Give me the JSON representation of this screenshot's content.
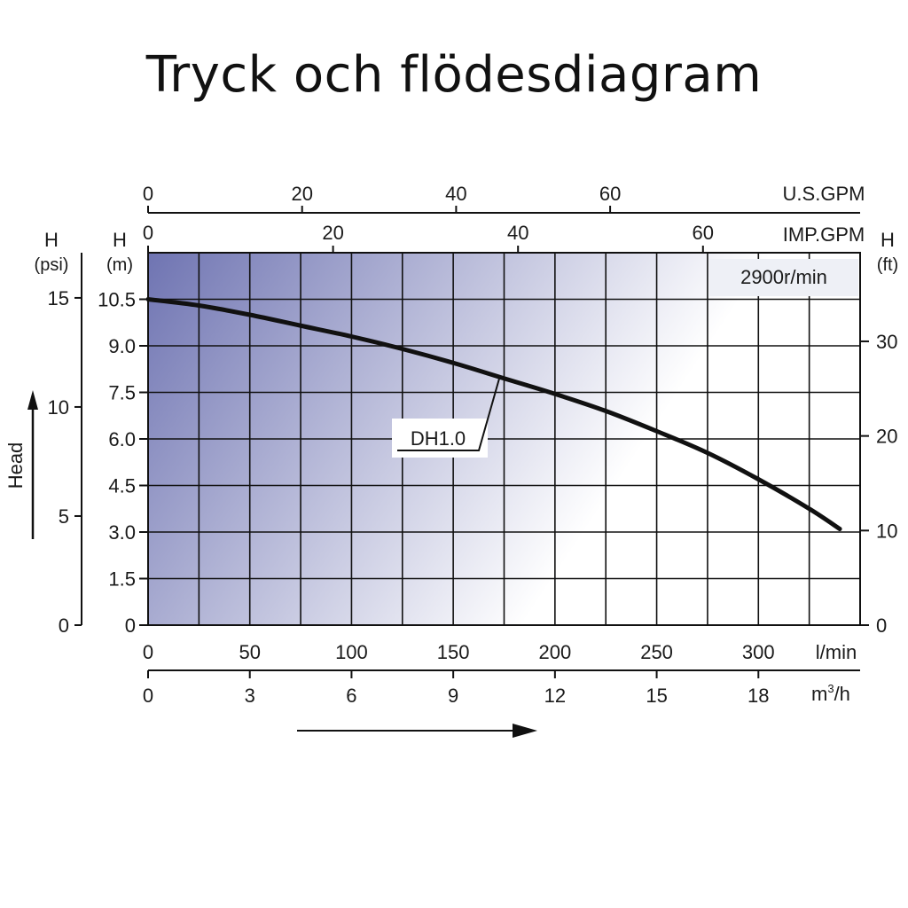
{
  "title": "Tryck och flödesdiagram",
  "chart_data": {
    "type": "line",
    "speed_label": "2900r/min",
    "series": [
      {
        "name": "DH1.0",
        "x": [
          0,
          25,
          50,
          75,
          100,
          125,
          150,
          175,
          200,
          225,
          250,
          275,
          300,
          325,
          340
        ],
        "values": [
          10.5,
          10.3,
          10.0,
          9.65,
          9.3,
          8.9,
          8.45,
          7.95,
          7.45,
          6.9,
          6.25,
          5.55,
          4.7,
          3.75,
          3.1
        ]
      }
    ],
    "x_axes": {
      "lmin": {
        "label": "l/min",
        "range": [
          0,
          350
        ],
        "ticks": [
          "0",
          "50",
          "100",
          "150",
          "200",
          "250",
          "300"
        ],
        "tick_values": [
          0,
          50,
          100,
          150,
          200,
          250,
          300
        ]
      },
      "m3h": {
        "label": "m",
        "label_sup": "3",
        "label_tail": "/h",
        "range": [
          0,
          21
        ],
        "ticks": [
          "0",
          "3",
          "6",
          "9",
          "12",
          "15",
          "18"
        ],
        "tick_values": [
          0,
          3,
          6,
          9,
          12,
          15,
          18
        ]
      },
      "usgpm": {
        "label": "U.S.GPM",
        "range": [
          0,
          92.46
        ],
        "ticks": [
          "0",
          "20",
          "40",
          "60"
        ],
        "tick_values": [
          0,
          20,
          40,
          60
        ]
      },
      "impgpm": {
        "label": "IMP.GPM",
        "range": [
          0,
          76.99
        ],
        "ticks": [
          "0",
          "20",
          "40",
          "60"
        ],
        "tick_values": [
          0,
          20,
          40,
          60
        ]
      }
    },
    "y_axes": {
      "m": {
        "label_top": "H",
        "label_unit": "(m)",
        "range": [
          0,
          12
        ],
        "ticks": [
          "0",
          "1.5",
          "3.0",
          "4.5",
          "6.0",
          "7.5",
          "9.0",
          "10.5"
        ],
        "tick_values": [
          0,
          1.5,
          3,
          4.5,
          6,
          7.5,
          9,
          10.5
        ]
      },
      "psi": {
        "label_top": "H",
        "label_unit": "(psi)",
        "range": [
          0,
          17.07
        ],
        "ticks": [
          "0",
          "5",
          "10",
          "15"
        ],
        "tick_values": [
          0,
          5,
          10,
          15
        ]
      },
      "ft": {
        "label_top": "H",
        "label_unit": "(ft)",
        "range": [
          0,
          39.37
        ],
        "ticks": [
          "0",
          "10",
          "20",
          "30"
        ],
        "tick_values": [
          0,
          10,
          20,
          30
        ]
      }
    },
    "head_label": "Head",
    "grid": true,
    "colors": {
      "gradient_dark": "#6f74b2",
      "gradient_light": "#ffffff",
      "grid": "#111111",
      "curve": "#111111"
    }
  }
}
